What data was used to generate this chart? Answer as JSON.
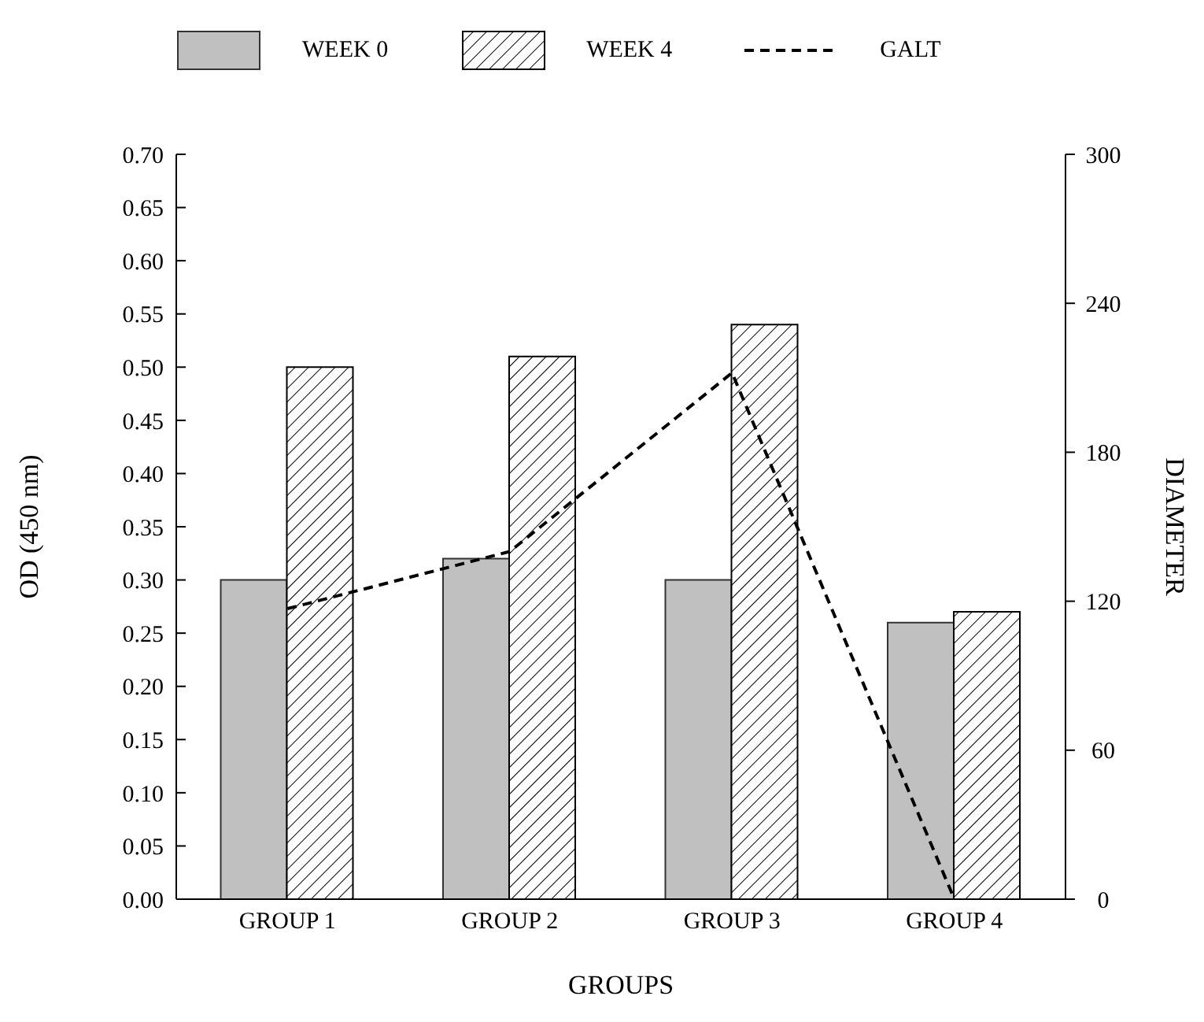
{
  "chart_data": {
    "type": "bar",
    "xlabel": "GROUPS",
    "ylabel": "OD (450 nm)",
    "y2label": "DIAMETER",
    "categories": [
      "GROUP 1",
      "GROUP 2",
      "GROUP 3",
      "GROUP 4"
    ],
    "series": [
      {
        "name": "WEEK 0",
        "color": "#c0c0c0",
        "values": [
          0.3,
          0.32,
          0.3,
          0.26
        ]
      },
      {
        "name": "WEEK 4",
        "color": "#000000",
        "values": [
          0.5,
          0.51,
          0.54,
          0.27
        ]
      },
      {
        "name": "GALT",
        "type": "line",
        "axis": "y2",
        "color": "#000000",
        "line_style": "dashed",
        "marker": "none",
        "values": [
          117,
          140,
          212,
          0
        ]
      }
    ],
    "ylim": [
      0,
      0.7
    ],
    "yticks": [
      {
        "value": 0,
        "label": "0.00"
      },
      {
        "value": 0.05,
        "label": "0.05"
      },
      {
        "value": 0.1,
        "label": "0.10"
      },
      {
        "value": 0.15,
        "label": "0.15"
      },
      {
        "value": 0.2,
        "label": "0.20"
      },
      {
        "value": 0.25,
        "label": "0.25"
      },
      {
        "value": 0.3,
        "label": "0.30"
      },
      {
        "value": 0.35,
        "label": "0.35"
      },
      {
        "value": 0.4,
        "label": "0.40"
      },
      {
        "value": 0.45,
        "label": "0.45"
      },
      {
        "value": 0.5,
        "label": "0.50"
      },
      {
        "value": 0.55,
        "label": "0.55"
      },
      {
        "value": 0.6,
        "label": "0.60"
      },
      {
        "value": 0.65,
        "label": "0.65"
      },
      {
        "value": 0.7,
        "label": "0.70"
      }
    ],
    "y2lim": [
      0,
      300
    ],
    "y2ticks": [
      0,
      60,
      120,
      180,
      240,
      300
    ],
    "grid": false,
    "legend": "top"
  }
}
